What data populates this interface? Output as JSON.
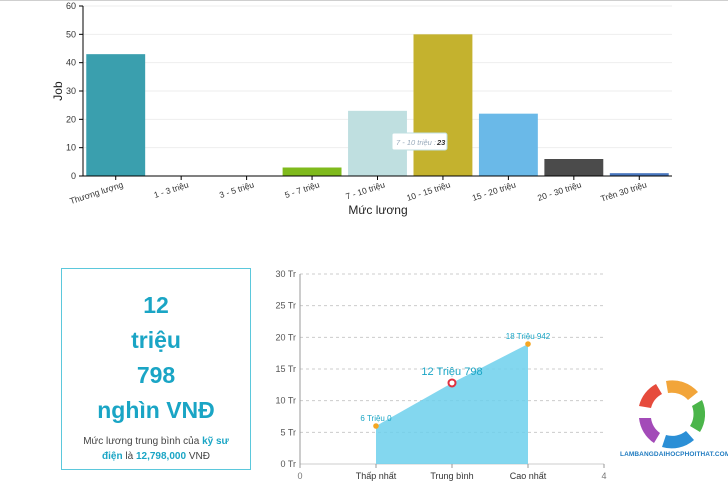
{
  "bar_chart": {
    "chart_data": {
      "type": "bar",
      "categories": [
        "Thương lượng",
        "1 - 3 triệu",
        "3 - 5 triệu",
        "5 - 7 triệu",
        "7 - 10 triệu",
        "10 - 15 triệu",
        "15 - 20 triệu",
        "20 - 30 triệu",
        "Trên 30 triệu"
      ],
      "values": [
        43,
        0,
        0,
        3,
        23,
        50,
        22,
        6,
        1
      ],
      "colors": [
        "#3a9fae",
        "#cccccc",
        "#cccccc",
        "#7fba1c",
        "#bfdfe0",
        "#c4b22e",
        "#6ab9e8",
        "#4b4b4b",
        "#4a78c0"
      ],
      "xlabel": "Mức lương",
      "ylabel": "Job",
      "ylim": [
        0,
        60
      ],
      "yticks": [
        "0",
        "10",
        "20",
        "30",
        "40",
        "50",
        "60"
      ],
      "tooltip": {
        "category": "7 - 10 triệu",
        "label": "7 - 10 triệu :",
        "value": "23"
      }
    }
  },
  "salary_card": {
    "lines": [
      "12",
      "triệu",
      "798",
      "nghìn VNĐ"
    ],
    "desc_prefix": "Mức lương trung bình của",
    "job_name": "kỹ sư điện",
    "desc_mid": "là",
    "amount": "12,798,000",
    "currency": "VNĐ"
  },
  "area_chart": {
    "chart_data": {
      "type": "area",
      "x_labels": [
        "0",
        "Thấp nhất",
        "Trung bình",
        "Cao nhất",
        "4"
      ],
      "points": [
        {
          "x": 1,
          "y": 6.0,
          "label": "6 Triệu 0"
        },
        {
          "x": 2,
          "y": 12.798,
          "label": "12 Triệu 798"
        },
        {
          "x": 3,
          "y": 18.942,
          "label": "18 Triệu 942"
        }
      ],
      "yticks": [
        "0 Tr",
        "5 Tr",
        "10 Tr",
        "15 Tr",
        "20 Tr",
        "25 Tr",
        "30 Tr"
      ],
      "ylim": [
        0,
        30
      ],
      "xlim": [
        0,
        4
      ],
      "fill_color": "#6dd0ec",
      "point_color": "#f5a623",
      "highlight_color": "#e03040"
    }
  },
  "logo": {
    "text": "LAMBANGDAIHOCPHOITHAT.COM"
  }
}
